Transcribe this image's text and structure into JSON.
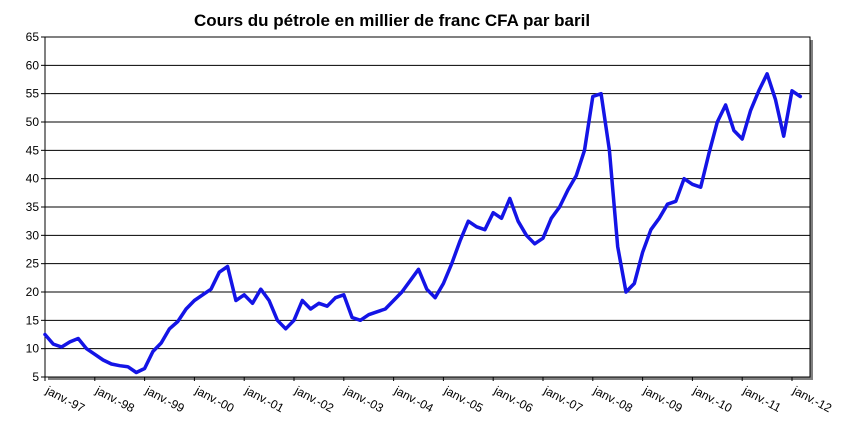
{
  "chart_data": {
    "type": "line",
    "title": "Cours du pétrole en millier de franc CFA par baril",
    "xlabel": "",
    "ylabel": "",
    "ylim": [
      5,
      65
    ],
    "y_ticks": [
      5,
      10,
      15,
      20,
      25,
      30,
      35,
      40,
      45,
      50,
      55,
      60,
      65
    ],
    "y_tick_labels": [
      "5",
      "10",
      "15",
      "20",
      "25",
      "30",
      "35",
      "40",
      "45",
      "50",
      "55",
      "60",
      "65"
    ],
    "x_range": [
      "1997-01",
      "2012-03"
    ],
    "x_ticks": [
      "1997-01",
      "1998-01",
      "1999-01",
      "2000-01",
      "2001-01",
      "2002-01",
      "2003-01",
      "2004-01",
      "2005-01",
      "2006-01",
      "2007-01",
      "2008-01",
      "2009-01",
      "2010-01",
      "2011-01",
      "2012-01"
    ],
    "x_tick_labels": [
      "janv.-97",
      "janv.-98",
      "janv.-99",
      "janv.-00",
      "janv.-01",
      "janv.-02",
      "janv.-03",
      "janv.-04",
      "janv.-05",
      "janv.-06",
      "janv.-07",
      "janv.-08",
      "janv.-09",
      "janv.-10",
      "janv.-11",
      "janv.-12"
    ],
    "grid": "horizontal",
    "legend": "none",
    "colors": {
      "line": "#1414e6",
      "grid": "#000000",
      "axis": "#000000",
      "background": "#ffffff",
      "frame_shadow": "#808080"
    },
    "series": [
      {
        "x": [
          "1997-01",
          "1997-03",
          "1997-05",
          "1997-07",
          "1997-09",
          "1997-11",
          "1998-01",
          "1998-03",
          "1998-05",
          "1998-07",
          "1998-09",
          "1998-11",
          "1999-01",
          "1999-03",
          "1999-05",
          "1999-07",
          "1999-09",
          "1999-11",
          "2000-01",
          "2000-03",
          "2000-05",
          "2000-07",
          "2000-09",
          "2000-11",
          "2001-01",
          "2001-03",
          "2001-05",
          "2001-07",
          "2001-09",
          "2001-11",
          "2002-01",
          "2002-03",
          "2002-05",
          "2002-07",
          "2002-09",
          "2002-11",
          "2003-01",
          "2003-03",
          "2003-05",
          "2003-07",
          "2003-09",
          "2003-11",
          "2004-01",
          "2004-03",
          "2004-05",
          "2004-07",
          "2004-09",
          "2004-11",
          "2005-01",
          "2005-03",
          "2005-05",
          "2005-07",
          "2005-09",
          "2005-11",
          "2006-01",
          "2006-03",
          "2006-05",
          "2006-07",
          "2006-09",
          "2006-11",
          "2007-01",
          "2007-03",
          "2007-05",
          "2007-07",
          "2007-09",
          "2007-11",
          "2008-01",
          "2008-03",
          "2008-05",
          "2008-07",
          "2008-09",
          "2008-11",
          "2009-01",
          "2009-03",
          "2009-05",
          "2009-07",
          "2009-09",
          "2009-11",
          "2010-01",
          "2010-03",
          "2010-05",
          "2010-07",
          "2010-09",
          "2010-11",
          "2011-01",
          "2011-03",
          "2011-05",
          "2011-07",
          "2011-09",
          "2011-11",
          "2012-01",
          "2012-03"
        ],
        "values": [
          12.5,
          10.8,
          10.3,
          11.2,
          11.8,
          10.0,
          9.0,
          8.0,
          7.3,
          7.0,
          6.8,
          5.8,
          6.5,
          9.5,
          11.0,
          13.5,
          14.8,
          17.0,
          18.5,
          19.5,
          20.5,
          23.5,
          24.5,
          18.5,
          19.5,
          18.0,
          20.5,
          18.5,
          15.0,
          13.5,
          15.0,
          18.5,
          17.0,
          18.0,
          17.5,
          19.0,
          19.5,
          15.5,
          15.0,
          16.0,
          16.5,
          17.0,
          18.5,
          20.0,
          22.0,
          24.0,
          20.5,
          19.0,
          21.5,
          25.0,
          29.0,
          32.5,
          31.5,
          31.0,
          34.0,
          33.0,
          36.5,
          32.5,
          30.0,
          28.5,
          29.5,
          33.0,
          35.0,
          38.0,
          40.5,
          45.0,
          54.5,
          55.0,
          45.0,
          28.0,
          20.0,
          21.5,
          27.0,
          31.0,
          33.0,
          35.5,
          36.0,
          40.0,
          39.0,
          38.5,
          44.5,
          50.0,
          53.0,
          48.5,
          47.0,
          52.0,
          55.5,
          58.5,
          54.0,
          47.5,
          55.5,
          54.5
        ]
      }
    ]
  }
}
